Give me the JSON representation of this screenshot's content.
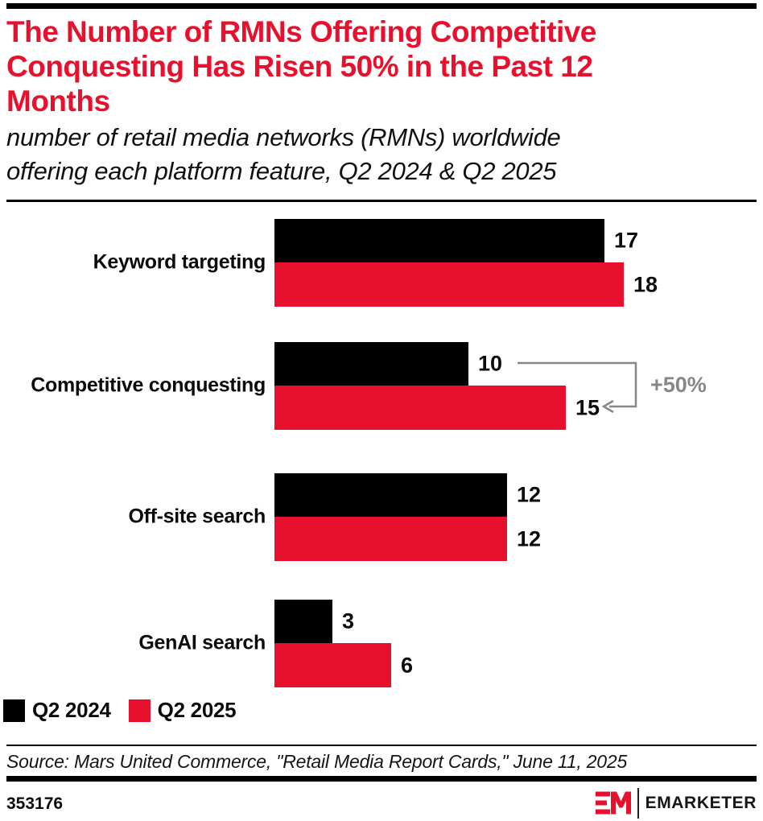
{
  "header": {
    "title_lines": [
      "The Number of RMNs Offering Competitive",
      "Conquesting Has Risen 50% in the Past 12",
      "Months"
    ],
    "subtitle_lines": [
      "number of retail media networks (RMNs) worldwide",
      "offering each platform feature, Q2 2024 & Q2 2025"
    ]
  },
  "chart_data": {
    "type": "bar",
    "orientation": "horizontal",
    "title": "The Number of RMNs Offering Competitive Conquesting Has Risen 50% in the Past 12 Months",
    "subtitle": "number of retail media networks (RMNs) worldwide offering each platform feature, Q2 2024 & Q2 2025",
    "categories": [
      "Keyword targeting",
      "Competitive conquesting",
      "Off-site search",
      "GenAI search"
    ],
    "series": [
      {
        "name": "Q2 2024",
        "color": "#000000",
        "values": [
          17,
          10,
          12,
          3
        ]
      },
      {
        "name": "Q2 2025",
        "color": "#e8112d",
        "values": [
          18,
          15,
          12,
          6
        ]
      }
    ],
    "xlim": [
      0,
      18
    ],
    "grid": false,
    "value_labels": true,
    "legend_position": "bottom-left",
    "annotation": {
      "text": "+50%",
      "target_category": "Competitive conquesting",
      "from_value": 10,
      "to_value": 15,
      "color": "#85878a"
    }
  },
  "legend": {
    "items": [
      {
        "label": "Q2 2024",
        "color": "#000000"
      },
      {
        "label": "Q2 2025",
        "color": "#e8112d"
      }
    ]
  },
  "source": {
    "text": "Source: Mars United Commerce, \"Retail Media Report Cards,\" June 11, 2025"
  },
  "footer": {
    "chart_id": "353176",
    "brand": "EMARKETER"
  },
  "colors": {
    "accent_red": "#e8112d",
    "black": "#000000",
    "annotation_gray": "#85878a"
  }
}
